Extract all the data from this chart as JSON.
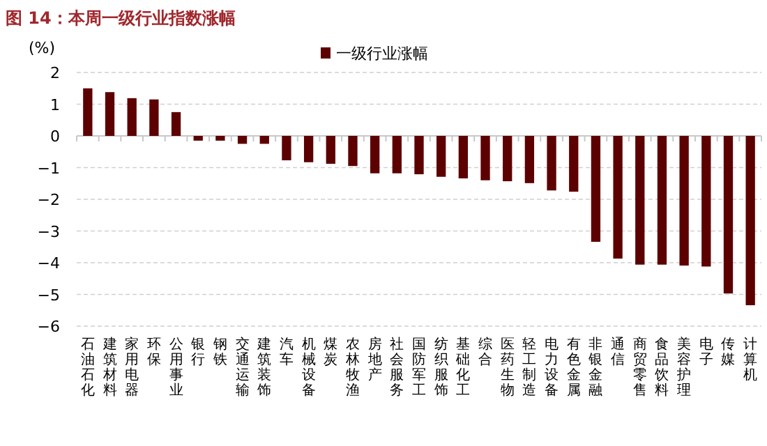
{
  "chart_data": {
    "type": "bar",
    "title": "图 14：本周一级行业指数涨幅",
    "ylabel": "(%)",
    "categories": [
      "石油石化",
      "建筑材料",
      "家用电器",
      "环保",
      "公用事业",
      "银行",
      "钢铁",
      "交通运输",
      "建筑装饰",
      "汽车",
      "机械设备",
      "煤炭",
      "农林牧渔",
      "房地产",
      "社会服务",
      "国防军工",
      "纺织服饰",
      "基础化工",
      "综合",
      "医药生物",
      "轻工制造",
      "电力设备",
      "有色金属",
      "非银金融",
      "通信",
      "商贸零售",
      "食品饮料",
      "美容护理",
      "电子",
      "传媒",
      "计算机"
    ],
    "series": [
      {
        "name": "一级行业涨幅",
        "color": "#5c0000",
        "values": [
          1.5,
          1.38,
          1.19,
          1.15,
          0.75,
          -0.15,
          -0.15,
          -0.25,
          -0.25,
          -0.77,
          -0.83,
          -0.88,
          -0.95,
          -1.18,
          -1.18,
          -1.21,
          -1.29,
          -1.34,
          -1.4,
          -1.43,
          -1.49,
          -1.72,
          -1.76,
          -3.34,
          -3.87,
          -4.06,
          -4.06,
          -4.09,
          -4.12,
          -4.97,
          -5.34
        ]
      }
    ],
    "ylim": [
      -6,
      2
    ],
    "yticks": [
      -6,
      -5,
      -4,
      -3,
      -2,
      -1,
      0,
      1,
      2
    ],
    "grid": "y",
    "legend": "top"
  }
}
